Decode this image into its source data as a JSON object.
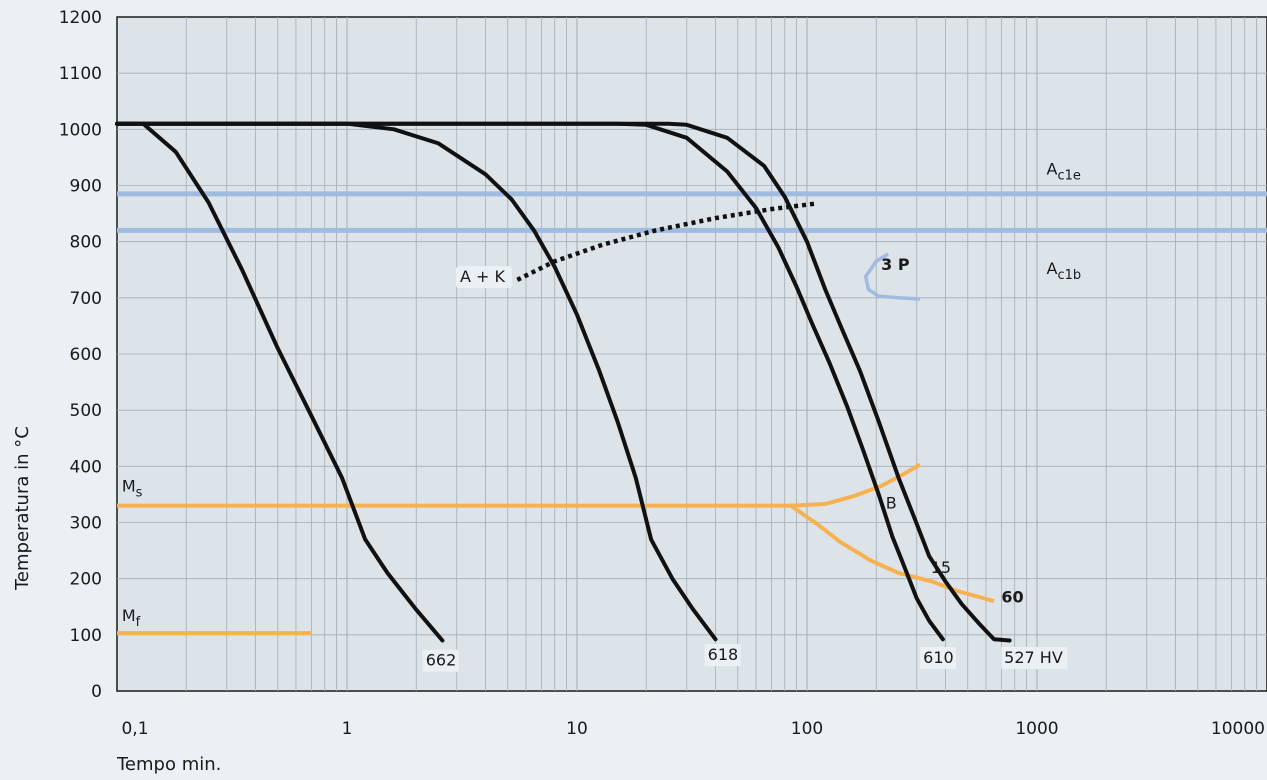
{
  "chart_data": {
    "type": "line",
    "xlabel": "Tempo min.",
    "ylabel": "Temperatura in °C",
    "x_scale": "log",
    "xlim": [
      0.1,
      10000
    ],
    "ylim": [
      0,
      1200
    ],
    "grid": true,
    "x_ticks": [
      {
        "value": 0.1,
        "label": "0,1"
      },
      {
        "value": 1,
        "label": "1"
      },
      {
        "value": 10,
        "label": "10"
      },
      {
        "value": 100,
        "label": "100"
      },
      {
        "value": 1000,
        "label": "1000"
      },
      {
        "value": 10000,
        "label": "10000"
      }
    ],
    "y_ticks": [
      {
        "value": 0,
        "label": "0"
      },
      {
        "value": 100,
        "label": "100"
      },
      {
        "value": 200,
        "label": "200"
      },
      {
        "value": 300,
        "label": "300"
      },
      {
        "value": 400,
        "label": "400"
      },
      {
        "value": 500,
        "label": "500"
      },
      {
        "value": 600,
        "label": "600"
      },
      {
        "value": 700,
        "label": "700"
      },
      {
        "value": 800,
        "label": "800"
      },
      {
        "value": 900,
        "label": "900"
      },
      {
        "value": 1000,
        "label": "1000"
      },
      {
        "value": 1100,
        "label": "1100"
      },
      {
        "value": 1200,
        "label": "1200"
      }
    ],
    "hlines": [
      {
        "value": 885,
        "label": "A",
        "sub": "c1e",
        "label_x": 1100,
        "label_y": 920
      },
      {
        "value": 820,
        "label": "A",
        "sub": "c1b",
        "label_x": 1100,
        "label_y": 742
      }
    ],
    "ms": {
      "value": 330,
      "label": "M",
      "sub": "s",
      "label_x": 0.105,
      "label_y": 355
    },
    "mf": {
      "value": 103,
      "x_end": 0.7,
      "label": "M",
      "sub": "f",
      "label_x": 0.105,
      "label_y": 125
    },
    "series": [
      {
        "label": "662",
        "label_x": 2.2,
        "label_y": 45,
        "points": [
          [
            0.1,
            1010
          ],
          [
            0.13,
            1010
          ],
          [
            0.18,
            960
          ],
          [
            0.25,
            870
          ],
          [
            0.35,
            750
          ],
          [
            0.5,
            610
          ],
          [
            0.7,
            490
          ],
          [
            0.95,
            380
          ],
          [
            1.2,
            270
          ],
          [
            1.5,
            210
          ],
          [
            2.0,
            145
          ],
          [
            2.6,
            90
          ]
        ]
      },
      {
        "label": "618",
        "label_x": 37,
        "label_y": 55,
        "points": [
          [
            0.1,
            1010
          ],
          [
            1.0,
            1010
          ],
          [
            1.6,
            1000
          ],
          [
            2.5,
            975
          ],
          [
            4,
            920
          ],
          [
            5.2,
            875
          ],
          [
            6.5,
            820
          ],
          [
            8,
            755
          ],
          [
            10,
            670
          ],
          [
            12.5,
            570
          ],
          [
            15,
            480
          ],
          [
            18,
            380
          ],
          [
            21,
            270
          ],
          [
            26,
            200
          ],
          [
            32,
            145
          ],
          [
            40,
            92
          ]
        ]
      },
      {
        "label": "610",
        "label_x": 320,
        "label_y": 50,
        "points": [
          [
            0.1,
            1010
          ],
          [
            15,
            1010
          ],
          [
            20,
            1008
          ],
          [
            30,
            985
          ],
          [
            45,
            925
          ],
          [
            60,
            860
          ],
          [
            75,
            790
          ],
          [
            90,
            720
          ],
          [
            105,
            655
          ],
          [
            125,
            585
          ],
          [
            150,
            505
          ],
          [
            175,
            430
          ],
          [
            205,
            350
          ],
          [
            235,
            275
          ],
          [
            260,
            230
          ],
          [
            300,
            165
          ],
          [
            340,
            125
          ],
          [
            390,
            92
          ]
        ]
      },
      {
        "label": "527 HV",
        "label_x": 720,
        "label_y": 50,
        "points": [
          [
            0.1,
            1010
          ],
          [
            25,
            1010
          ],
          [
            30,
            1008
          ],
          [
            45,
            985
          ],
          [
            65,
            935
          ],
          [
            80,
            880
          ],
          [
            100,
            800
          ],
          [
            120,
            715
          ],
          [
            140,
            650
          ],
          [
            170,
            570
          ],
          [
            205,
            480
          ],
          [
            250,
            380
          ],
          [
            295,
            305
          ],
          [
            340,
            240
          ],
          [
            400,
            195
          ],
          [
            470,
            155
          ],
          [
            560,
            120
          ],
          [
            650,
            92
          ],
          [
            760,
            90
          ]
        ]
      }
    ],
    "ak_curve": {
      "label": "A + K",
      "label_x": 3.1,
      "label_y": 728,
      "points": [
        [
          5.5,
          732
        ],
        [
          8,
          765
        ],
        [
          13,
          795
        ],
        [
          22,
          820
        ],
        [
          40,
          842
        ],
        [
          70,
          858
        ],
        [
          110,
          868
        ]
      ]
    },
    "bainite_upper": {
      "label": "B",
      "label_x": 220,
      "label_y": 325,
      "points": [
        [
          85,
          330
        ],
        [
          120,
          333
        ],
        [
          160,
          347
        ],
        [
          210,
          365
        ],
        [
          260,
          385
        ],
        [
          310,
          403
        ]
      ]
    },
    "bainite_lower": {
      "label": "15",
      "label_x": 345,
      "label_y": 210,
      "points": [
        [
          85,
          330
        ],
        [
          110,
          298
        ],
        [
          140,
          265
        ],
        [
          190,
          232
        ],
        [
          250,
          210
        ],
        [
          350,
          195
        ],
        [
          450,
          178
        ],
        [
          650,
          160
        ]
      ],
      "end_label": "60",
      "end_label_x": 700,
      "end_label_y": 158
    },
    "pearlite": {
      "label": "3  P",
      "label_x": 210,
      "label_y": 750,
      "points": [
        [
          225,
          778
        ],
        [
          200,
          765
        ],
        [
          180,
          738
        ],
        [
          185,
          715
        ],
        [
          205,
          703
        ],
        [
          250,
          700
        ],
        [
          310,
          698
        ]
      ]
    }
  }
}
